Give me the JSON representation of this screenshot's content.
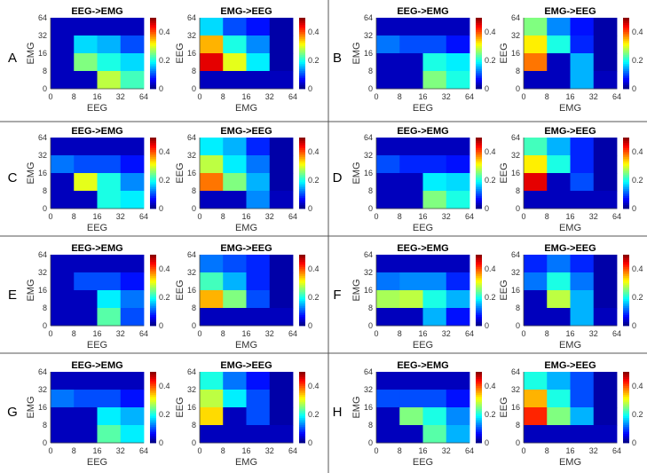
{
  "chart_data": {
    "type": "heatmap",
    "colormap": "jet",
    "clim": [
      0,
      0.5
    ],
    "colorbar_ticks": [
      "0",
      "0.2",
      "0.4"
    ],
    "xticks": [
      "0",
      "8",
      "16",
      "32",
      "64"
    ],
    "yticks": [
      "0",
      "8",
      "16",
      "32",
      "64"
    ],
    "titles": {
      "eeg_to_emg": "EEG->EMG",
      "emg_to_eeg": "EMG->EEG"
    },
    "axis_labels": {
      "eeg_to_emg": {
        "x": "EEG",
        "y": "EMG"
      },
      "emg_to_eeg": {
        "x": "EMG",
        "y": "EEG"
      }
    },
    "note": "values[row][col]; rows from top (y band 32-64) to bottom (y band 0-8); cols from left (x band 0-8) to right (x band 32-64)",
    "panels": [
      {
        "label": "A",
        "eeg_to_emg": [
          [
            0.03,
            0.03,
            0.03,
            0.03
          ],
          [
            0.03,
            0.17,
            0.15,
            0.1
          ],
          [
            0.03,
            0.25,
            0.2,
            0.17
          ],
          [
            0.03,
            0.03,
            0.28,
            0.22
          ]
        ],
        "emg_to_eeg": [
          [
            0.17,
            0.1,
            0.07,
            0.02
          ],
          [
            0.35,
            0.2,
            0.13,
            0.02
          ],
          [
            0.45,
            0.3,
            0.18,
            0.02
          ],
          [
            0.03,
            0.03,
            0.03,
            0.03
          ]
        ]
      },
      {
        "label": "B",
        "eeg_to_emg": [
          [
            0.03,
            0.03,
            0.03,
            0.03
          ],
          [
            0.12,
            0.1,
            0.1,
            0.07
          ],
          [
            0.03,
            0.03,
            0.2,
            0.18
          ],
          [
            0.03,
            0.03,
            0.25,
            0.2
          ]
        ],
        "emg_to_eeg": [
          [
            0.25,
            0.13,
            0.07,
            0.02
          ],
          [
            0.32,
            0.2,
            0.08,
            0.02
          ],
          [
            0.38,
            0.03,
            0.15,
            0.02
          ],
          [
            0.03,
            0.03,
            0.15,
            0.03
          ]
        ]
      },
      {
        "label": "C",
        "eeg_to_emg": [
          [
            0.03,
            0.03,
            0.03,
            0.03
          ],
          [
            0.12,
            0.1,
            0.1,
            0.07
          ],
          [
            0.03,
            0.3,
            0.2,
            0.13
          ],
          [
            0.03,
            0.03,
            0.2,
            0.18
          ]
        ],
        "emg_to_eeg": [
          [
            0.18,
            0.15,
            0.08,
            0.02
          ],
          [
            0.28,
            0.18,
            0.12,
            0.02
          ],
          [
            0.38,
            0.25,
            0.15,
            0.02
          ],
          [
            0.03,
            0.03,
            0.13,
            0.03
          ]
        ]
      },
      {
        "label": "D",
        "eeg_to_emg": [
          [
            0.03,
            0.03,
            0.03,
            0.03
          ],
          [
            0.1,
            0.08,
            0.08,
            0.07
          ],
          [
            0.03,
            0.03,
            0.18,
            0.17
          ],
          [
            0.03,
            0.03,
            0.25,
            0.2
          ]
        ],
        "emg_to_eeg": [
          [
            0.22,
            0.15,
            0.08,
            0.02
          ],
          [
            0.32,
            0.2,
            0.08,
            0.02
          ],
          [
            0.45,
            0.03,
            0.1,
            0.02
          ],
          [
            0.03,
            0.03,
            0.03,
            0.03
          ]
        ]
      },
      {
        "label": "E",
        "eeg_to_emg": [
          [
            0.03,
            0.03,
            0.03,
            0.03
          ],
          [
            0.03,
            0.1,
            0.1,
            0.07
          ],
          [
            0.03,
            0.03,
            0.18,
            0.12
          ],
          [
            0.03,
            0.03,
            0.23,
            0.1
          ]
        ],
        "emg_to_eeg": [
          [
            0.12,
            0.1,
            0.08,
            0.02
          ],
          [
            0.22,
            0.15,
            0.08,
            0.02
          ],
          [
            0.35,
            0.25,
            0.1,
            0.02
          ],
          [
            0.03,
            0.03,
            0.03,
            0.03
          ]
        ]
      },
      {
        "label": "F",
        "eeg_to_emg": [
          [
            0.03,
            0.03,
            0.03,
            0.03
          ],
          [
            0.12,
            0.13,
            0.13,
            0.08
          ],
          [
            0.27,
            0.28,
            0.2,
            0.15
          ],
          [
            0.03,
            0.03,
            0.15,
            0.07
          ]
        ],
        "emg_to_eeg": [
          [
            0.08,
            0.12,
            0.08,
            0.02
          ],
          [
            0.12,
            0.2,
            0.12,
            0.02
          ],
          [
            0.03,
            0.28,
            0.15,
            0.02
          ],
          [
            0.03,
            0.03,
            0.15,
            0.03
          ]
        ]
      },
      {
        "label": "G",
        "eeg_to_emg": [
          [
            0.03,
            0.03,
            0.03,
            0.03
          ],
          [
            0.12,
            0.1,
            0.1,
            0.07
          ],
          [
            0.03,
            0.03,
            0.18,
            0.15
          ],
          [
            0.03,
            0.03,
            0.23,
            0.18
          ]
        ],
        "emg_to_eeg": [
          [
            0.2,
            0.12,
            0.07,
            0.02
          ],
          [
            0.28,
            0.18,
            0.1,
            0.02
          ],
          [
            0.33,
            0.03,
            0.1,
            0.02
          ],
          [
            0.03,
            0.03,
            0.03,
            0.03
          ]
        ]
      },
      {
        "label": "H",
        "eeg_to_emg": [
          [
            0.03,
            0.03,
            0.03,
            0.03
          ],
          [
            0.1,
            0.1,
            0.1,
            0.07
          ],
          [
            0.03,
            0.25,
            0.2,
            0.13
          ],
          [
            0.03,
            0.03,
            0.23,
            0.15
          ]
        ],
        "emg_to_eeg": [
          [
            0.2,
            0.15,
            0.1,
            0.02
          ],
          [
            0.35,
            0.2,
            0.1,
            0.02
          ],
          [
            0.42,
            0.25,
            0.15,
            0.02
          ],
          [
            0.03,
            0.03,
            0.03,
            0.03
          ]
        ]
      }
    ]
  }
}
